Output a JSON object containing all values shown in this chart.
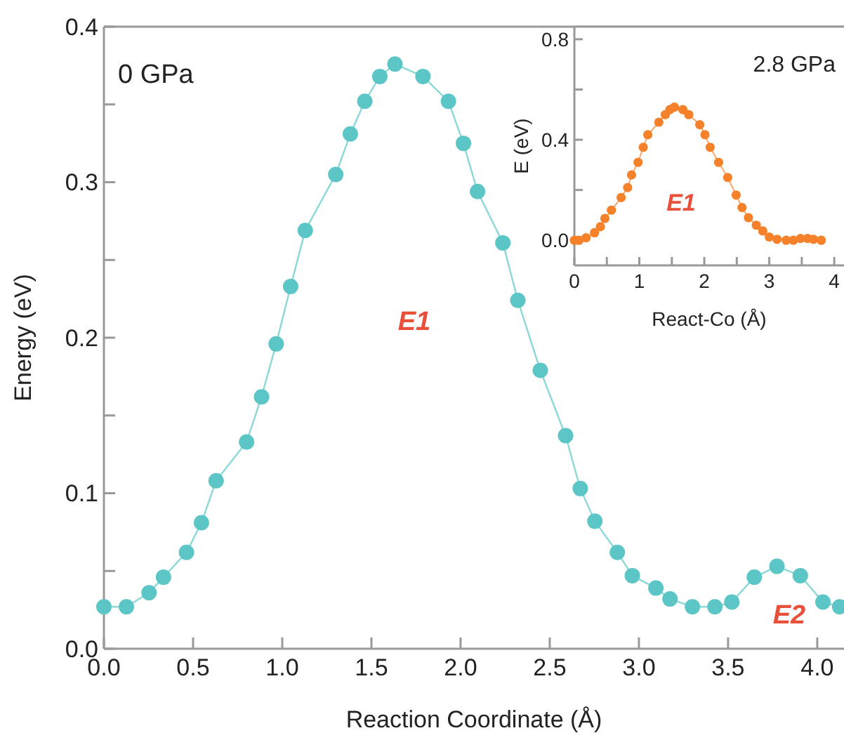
{
  "chart_data": [
    {
      "type": "line",
      "marker": "circle",
      "line_style": "solid",
      "xlabel": "Reaction Coordinate (Å)",
      "ylabel": "Energy (eV)",
      "xlim": [
        0,
        4.15
      ],
      "ylim": [
        0,
        0.4
      ],
      "xticks": [
        {
          "value": 0,
          "label": "0.0"
        },
        0.5,
        {
          "value": 1,
          "label": "1.0"
        },
        1.5,
        {
          "value": 2,
          "label": "2.0"
        },
        2.5,
        {
          "value": 3,
          "label": "3.0"
        },
        3.5,
        {
          "value": 4,
          "label": "4.0"
        }
      ],
      "yticks": [
        {
          "value": 0,
          "label": "0.0"
        },
        {
          "value": 0.05,
          "label": null
        },
        0.1,
        {
          "value": 0.15,
          "label": null
        },
        0.2,
        {
          "value": 0.25,
          "label": null
        },
        0.3,
        {
          "value": 0.35,
          "label": null
        },
        0.4
      ],
      "annotations": [
        "0 GPa",
        "E1",
        "E2"
      ],
      "series": [
        {
          "color": "#5cc6c6",
          "x": [
            0,
            0.126,
            0.253,
            0.334,
            0.463,
            0.547,
            0.629,
            0.8,
            0.884,
            0.966,
            1.047,
            1.129,
            1.3,
            1.382,
            1.463,
            1.547,
            1.632,
            1.789,
            1.932,
            2.016,
            2.095,
            2.237,
            2.321,
            2.447,
            2.589,
            2.671,
            2.753,
            2.879,
            2.963,
            3.095,
            3.174,
            3.3,
            3.426,
            3.521,
            3.647,
            3.774,
            3.905,
            4.032,
            4.126
          ],
          "values": [
            0.027,
            0.027,
            0.036,
            0.046,
            0.062,
            0.081,
            0.108,
            0.133,
            0.162,
            0.196,
            0.233,
            0.269,
            0.305,
            0.331,
            0.352,
            0.368,
            0.376,
            0.368,
            0.352,
            0.325,
            0.294,
            0.261,
            0.224,
            0.179,
            0.137,
            0.103,
            0.082,
            0.062,
            0.047,
            0.039,
            0.032,
            0.027,
            0.027,
            0.03,
            0.046,
            0.053,
            0.047,
            0.03,
            0.027
          ]
        }
      ]
    },
    {
      "type": "line",
      "marker": "circle",
      "line_style": "solid",
      "xlabel": "React-Co (Å)",
      "ylabel": "E (eV)",
      "xlim": [
        0,
        4.15
      ],
      "ylim": [
        -0.1,
        0.85
      ],
      "xticks": [
        0,
        {
          "value": 0.5,
          "label": null
        },
        1,
        {
          "value": 1.5,
          "label": null
        },
        2,
        {
          "value": 2.5,
          "label": null
        },
        3,
        {
          "value": 3.5,
          "label": null
        },
        4
      ],
      "yticks": [
        {
          "value": 0,
          "label": "0.0"
        },
        {
          "value": 0.2,
          "label": null
        },
        0.4,
        {
          "value": 0.6,
          "label": null
        },
        0.8
      ],
      "annotations": [
        "2.8 GPa",
        "E1"
      ],
      "series": [
        {
          "color": "#f5822a",
          "x": [
            0,
            0.07,
            0.18,
            0.31,
            0.4,
            0.47,
            0.57,
            0.72,
            0.82,
            0.88,
            0.98,
            1.06,
            1.13,
            1.3,
            1.4,
            1.47,
            1.54,
            1.67,
            1.76,
            1.93,
            2.01,
            2.09,
            2.22,
            2.36,
            2.49,
            2.58,
            2.68,
            2.8,
            2.9,
            3.0,
            3.12,
            3.26,
            3.37,
            3.48,
            3.59,
            3.68,
            3.8
          ],
          "values": [
            0,
            0,
            0.01,
            0.03,
            0.054,
            0.087,
            0.12,
            0.17,
            0.21,
            0.26,
            0.31,
            0.37,
            0.42,
            0.47,
            0.5,
            0.52,
            0.53,
            0.52,
            0.5,
            0.46,
            0.42,
            0.37,
            0.31,
            0.25,
            0.18,
            0.13,
            0.09,
            0.06,
            0.037,
            0.013,
            0.004,
            0,
            0,
            0.007,
            0.007,
            0.004,
            0
          ]
        }
      ]
    }
  ]
}
